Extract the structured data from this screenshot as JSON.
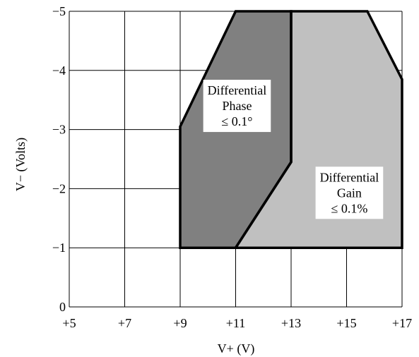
{
  "chart_data": {
    "type": "area",
    "title": "",
    "xlabel": "V+ (V)",
    "ylabel": "V− (Volts)",
    "xlim": [
      5,
      17
    ],
    "ylim": [
      0,
      -5
    ],
    "xticks": [
      5,
      7,
      9,
      11,
      13,
      15,
      17
    ],
    "yticks": [
      0,
      -1,
      -2,
      -3,
      -4,
      -5
    ],
    "xtick_labels": [
      "+5",
      "+7",
      "+9",
      "+11",
      "+13",
      "+15",
      "+17"
    ],
    "ytick_labels": [
      "0",
      "−1",
      "−2",
      "−3",
      "−4",
      "−5"
    ],
    "grid": true,
    "series": [
      {
        "name": "Differential Phase ≤ 0.1°",
        "color": "#808080",
        "points": [
          [
            9,
            -1
          ],
          [
            11,
            -1
          ],
          [
            13,
            -2.45
          ],
          [
            13,
            -5
          ],
          [
            11,
            -5
          ],
          [
            9,
            -3.05
          ]
        ]
      },
      {
        "name": "Differential Gain ≤ 0.1%",
        "color": "#c0c0c0",
        "points": [
          [
            11,
            -1
          ],
          [
            17,
            -1
          ],
          [
            17,
            -3.85
          ],
          [
            15.75,
            -5
          ],
          [
            13,
            -5
          ],
          [
            13,
            -2.45
          ]
        ]
      }
    ],
    "annotations": [
      {
        "lines": [
          "Differential",
          "Phase",
          "≤ 0.1°"
        ],
        "at": [
          11.05,
          -3.4
        ]
      },
      {
        "lines": [
          "Differential",
          "Gain",
          "≤ 0.1%"
        ],
        "at": [
          15.1,
          -1.93
        ]
      }
    ],
    "colors": {
      "phase_fill": "#808080",
      "gain_fill": "#c0c0c0",
      "outline": "#000000"
    }
  }
}
